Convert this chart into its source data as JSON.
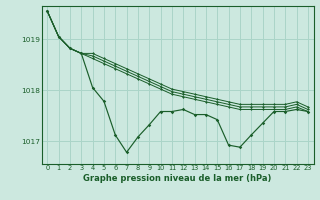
{
  "background_color": "#cce8df",
  "grid_color": "#aad4c8",
  "line_color": "#1a5e2a",
  "title": "Graphe pression niveau de la mer (hPa)",
  "yticks": [
    1017,
    1018,
    1019
  ],
  "xtick_labels": [
    "0",
    "1",
    "2",
    "3",
    "4",
    "5",
    "6",
    "7",
    "8",
    "9",
    "10",
    "11",
    "12",
    "13",
    "14",
    "15",
    "16",
    "17",
    "18",
    "19",
    "20",
    "21",
    "22",
    "23"
  ],
  "xlim": [
    -0.5,
    23.5
  ],
  "ylim": [
    1016.55,
    1019.65
  ],
  "series": [
    [
      1019.55,
      1019.05,
      1018.82,
      1018.72,
      1018.05,
      1017.78,
      1017.12,
      1016.78,
      1017.08,
      1017.32,
      1017.58,
      1017.58,
      1017.62,
      1017.52,
      1017.52,
      1017.42,
      1016.92,
      1016.88,
      1017.12,
      1017.35,
      1017.58,
      1017.58,
      1017.62,
      1017.58
    ],
    [
      1019.55,
      1019.05,
      1018.82,
      1018.72,
      1018.62,
      1018.52,
      1018.42,
      1018.32,
      1018.22,
      1018.12,
      1018.02,
      1017.92,
      1017.87,
      1017.82,
      1017.77,
      1017.72,
      1017.67,
      1017.62,
      1017.62,
      1017.62,
      1017.62,
      1017.62,
      1017.67,
      1017.58
    ],
    [
      1019.55,
      1019.05,
      1018.82,
      1018.72,
      1018.67,
      1018.57,
      1018.47,
      1018.37,
      1018.27,
      1018.17,
      1018.07,
      1017.97,
      1017.92,
      1017.87,
      1017.82,
      1017.77,
      1017.72,
      1017.67,
      1017.67,
      1017.67,
      1017.67,
      1017.67,
      1017.72,
      1017.62
    ],
    [
      1019.55,
      1019.05,
      1018.82,
      1018.72,
      1018.72,
      1018.62,
      1018.52,
      1018.42,
      1018.32,
      1018.22,
      1018.12,
      1018.02,
      1017.97,
      1017.92,
      1017.87,
      1017.82,
      1017.77,
      1017.72,
      1017.72,
      1017.72,
      1017.72,
      1017.72,
      1017.77,
      1017.67
    ]
  ],
  "title_fontsize": 6.0,
  "tick_fontsize": 4.8
}
